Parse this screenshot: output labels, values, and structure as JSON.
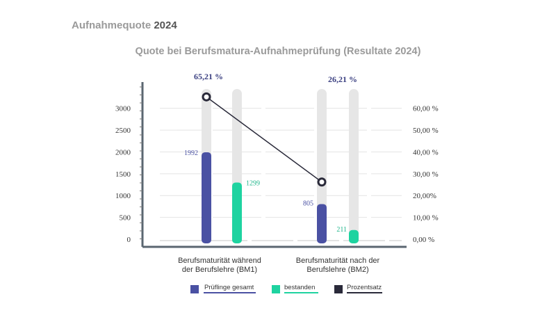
{
  "header": {
    "prefix": "Aufnahmequote",
    "year": "2024"
  },
  "chart_data": {
    "type": "bar",
    "title": "Quote bei Berufsmatura-Aufnahmeprüfung (Resultate 2024)",
    "categories": [
      [
        "Berufsmaturität während",
        "der Berufslehre (BM1)"
      ],
      [
        "Berufsmaturität nach der",
        "Berufslehre (BM2)"
      ]
    ],
    "series": [
      {
        "name": "Prüflinge gesamt",
        "values": [
          1992,
          805
        ],
        "labels": [
          "1992",
          "805"
        ],
        "color": "#4a51a3"
      },
      {
        "name": "bestanden",
        "values": [
          1299,
          211
        ],
        "labels": [
          "1299",
          "211"
        ],
        "color": "#1ed3a0"
      },
      {
        "name": "Prozentsatz",
        "type": "line",
        "values": [
          65.21,
          26.21
        ],
        "labels": [
          "65,21 %",
          "26,21 %"
        ],
        "color": "#2a2a3a"
      }
    ],
    "y_left": {
      "ylim": [
        0,
        3250
      ],
      "ticks": [
        "0",
        "500",
        "1000",
        "1500",
        "2000",
        "2500",
        "3000"
      ]
    },
    "y_right": {
      "ylim": [
        0,
        65
      ],
      "ticks": [
        "0,00 %",
        "10,00 %",
        "20,00%",
        "30,00 %",
        "40,00 %",
        "50,00 %",
        "60,00 %"
      ]
    },
    "grid": true,
    "legend": "bottom"
  }
}
